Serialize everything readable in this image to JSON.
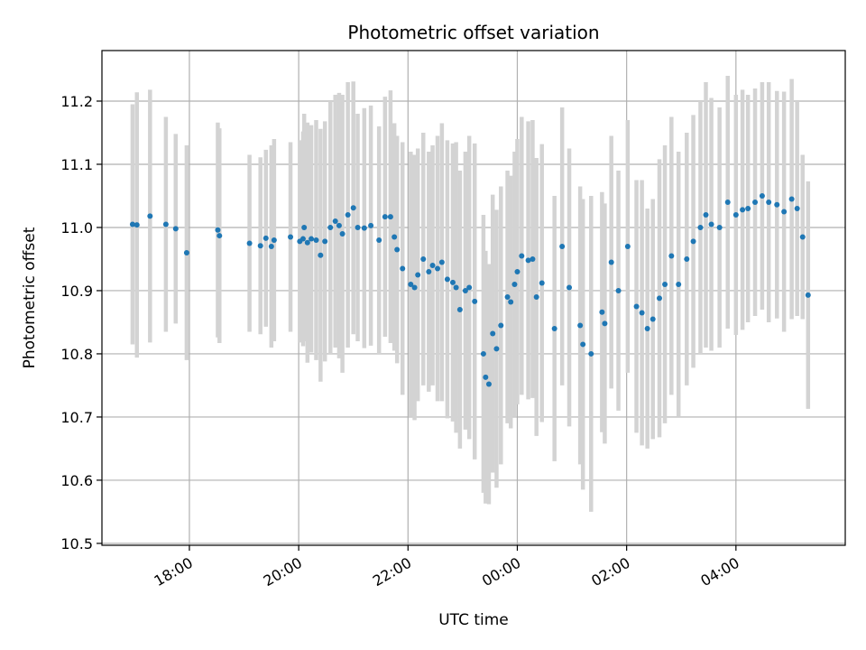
{
  "chart_data": {
    "type": "scatter",
    "title": "Photometric offset variation",
    "xlabel": "UTC time",
    "ylabel": "Photometric offset",
    "x_unit": "hours since 00:00 UTC",
    "xlim": [
      -7.6,
      6.0
    ],
    "ylim": [
      10.497,
      11.28
    ],
    "grid": true,
    "error_bar_color": "#d3d3d3",
    "marker_color": "#1f77b4",
    "x_ticks": [
      {
        "value": -6,
        "label": "18:00"
      },
      {
        "value": -4,
        "label": "20:00"
      },
      {
        "value": -2,
        "label": "22:00"
      },
      {
        "value": 0,
        "label": "00:00"
      },
      {
        "value": 2,
        "label": "02:00"
      },
      {
        "value": 4,
        "label": "04:00"
      }
    ],
    "y_ticks": [
      {
        "value": 10.5,
        "label": "10.5"
      },
      {
        "value": 10.6,
        "label": "10.6"
      },
      {
        "value": 10.7,
        "label": "10.7"
      },
      {
        "value": 10.8,
        "label": "10.8"
      },
      {
        "value": 10.9,
        "label": "10.9"
      },
      {
        "value": 11.0,
        "label": "11.0"
      },
      {
        "value": 11.1,
        "label": "11.1"
      },
      {
        "value": 11.2,
        "label": "11.2"
      }
    ],
    "points": [
      [
        -7.04,
        11.005,
        0.19
      ],
      [
        -6.96,
        11.004,
        0.21
      ],
      [
        -6.72,
        11.018,
        0.2
      ],
      [
        -6.43,
        11.005,
        0.17
      ],
      [
        -6.25,
        10.998,
        0.15
      ],
      [
        -6.05,
        10.96,
        0.17
      ],
      [
        -5.48,
        10.996,
        0.17
      ],
      [
        -5.45,
        10.987,
        0.17
      ],
      [
        -4.9,
        10.975,
        0.14
      ],
      [
        -4.7,
        10.971,
        0.14
      ],
      [
        -4.6,
        10.983,
        0.14
      ],
      [
        -4.5,
        10.97,
        0.16
      ],
      [
        -4.45,
        10.98,
        0.16
      ],
      [
        -4.15,
        10.985,
        0.15
      ],
      [
        -3.98,
        10.978,
        0.16
      ],
      [
        -3.92,
        10.982,
        0.17
      ],
      [
        -3.9,
        11.0,
        0.18
      ],
      [
        -3.84,
        10.976,
        0.19
      ],
      [
        -3.77,
        10.982,
        0.18
      ],
      [
        -3.68,
        10.98,
        0.19
      ],
      [
        -3.6,
        10.956,
        0.2
      ],
      [
        -3.52,
        10.978,
        0.19
      ],
      [
        -3.42,
        11.0,
        0.2
      ],
      [
        -3.33,
        11.01,
        0.2
      ],
      [
        -3.26,
        11.003,
        0.21
      ],
      [
        -3.2,
        10.99,
        0.22
      ],
      [
        -3.1,
        11.02,
        0.21
      ],
      [
        -3.0,
        11.031,
        0.2
      ],
      [
        -2.92,
        11.0,
        0.18
      ],
      [
        -2.8,
        10.999,
        0.19
      ],
      [
        -2.68,
        11.003,
        0.19
      ],
      [
        -2.53,
        10.98,
        0.18
      ],
      [
        -2.42,
        11.017,
        0.19
      ],
      [
        -2.32,
        11.017,
        0.2
      ],
      [
        -2.25,
        10.985,
        0.18
      ],
      [
        -2.2,
        10.965,
        0.18
      ],
      [
        -2.1,
        10.935,
        0.2
      ],
      [
        -1.95,
        10.91,
        0.21
      ],
      [
        -1.88,
        10.905,
        0.21
      ],
      [
        -1.82,
        10.925,
        0.2
      ],
      [
        -1.72,
        10.95,
        0.2
      ],
      [
        -1.62,
        10.93,
        0.19
      ],
      [
        -1.55,
        10.94,
        0.19
      ],
      [
        -1.46,
        10.935,
        0.21
      ],
      [
        -1.38,
        10.945,
        0.22
      ],
      [
        -1.28,
        10.918,
        0.22
      ],
      [
        -1.18,
        10.913,
        0.22
      ],
      [
        -1.12,
        10.905,
        0.23
      ],
      [
        -1.05,
        10.87,
        0.22
      ],
      [
        -0.95,
        10.9,
        0.22
      ],
      [
        -0.88,
        10.905,
        0.24
      ],
      [
        -0.78,
        10.883,
        0.25
      ],
      [
        -0.62,
        10.8,
        0.22
      ],
      [
        -0.58,
        10.763,
        0.2
      ],
      [
        -0.52,
        10.752,
        0.19
      ],
      [
        -0.45,
        10.832,
        0.22
      ],
      [
        -0.38,
        10.808,
        0.22
      ],
      [
        -0.3,
        10.845,
        0.22
      ],
      [
        -0.18,
        10.89,
        0.2
      ],
      [
        -0.12,
        10.882,
        0.2
      ],
      [
        -0.05,
        10.91,
        0.21
      ],
      [
        0.0,
        10.93,
        0.21
      ],
      [
        0.08,
        10.955,
        0.22
      ],
      [
        0.2,
        10.948,
        0.22
      ],
      [
        0.28,
        10.95,
        0.22
      ],
      [
        0.35,
        10.89,
        0.22
      ],
      [
        0.45,
        10.912,
        0.22
      ],
      [
        0.68,
        10.84,
        0.21
      ],
      [
        0.82,
        10.97,
        0.22
      ],
      [
        0.95,
        10.905,
        0.22
      ],
      [
        1.15,
        10.845,
        0.22
      ],
      [
        1.2,
        10.815,
        0.23
      ],
      [
        1.35,
        10.8,
        0.25
      ],
      [
        1.55,
        10.866,
        0.19
      ],
      [
        1.6,
        10.848,
        0.19
      ],
      [
        1.72,
        10.945,
        0.2
      ],
      [
        1.85,
        10.9,
        0.19
      ],
      [
        2.02,
        10.97,
        0.2
      ],
      [
        2.18,
        10.875,
        0.2
      ],
      [
        2.28,
        10.865,
        0.21
      ],
      [
        2.38,
        10.84,
        0.19
      ],
      [
        2.48,
        10.855,
        0.19
      ],
      [
        2.6,
        10.888,
        0.22
      ],
      [
        2.7,
        10.91,
        0.22
      ],
      [
        2.82,
        10.955,
        0.22
      ],
      [
        2.95,
        10.91,
        0.21
      ],
      [
        3.1,
        10.95,
        0.2
      ],
      [
        3.22,
        10.978,
        0.2
      ],
      [
        3.35,
        11.0,
        0.2
      ],
      [
        3.45,
        11.02,
        0.21
      ],
      [
        3.55,
        11.005,
        0.2
      ],
      [
        3.7,
        11.0,
        0.19
      ],
      [
        3.85,
        11.04,
        0.2
      ],
      [
        4.0,
        11.02,
        0.19
      ],
      [
        4.12,
        11.028,
        0.19
      ],
      [
        4.22,
        11.03,
        0.18
      ],
      [
        4.35,
        11.04,
        0.18
      ],
      [
        4.48,
        11.05,
        0.18
      ],
      [
        4.6,
        11.04,
        0.19
      ],
      [
        4.75,
        11.036,
        0.18
      ],
      [
        4.88,
        11.025,
        0.19
      ],
      [
        5.02,
        11.045,
        0.19
      ],
      [
        5.12,
        11.03,
        0.17
      ],
      [
        5.22,
        10.985,
        0.13
      ],
      [
        5.32,
        10.893,
        0.18
      ]
    ]
  }
}
